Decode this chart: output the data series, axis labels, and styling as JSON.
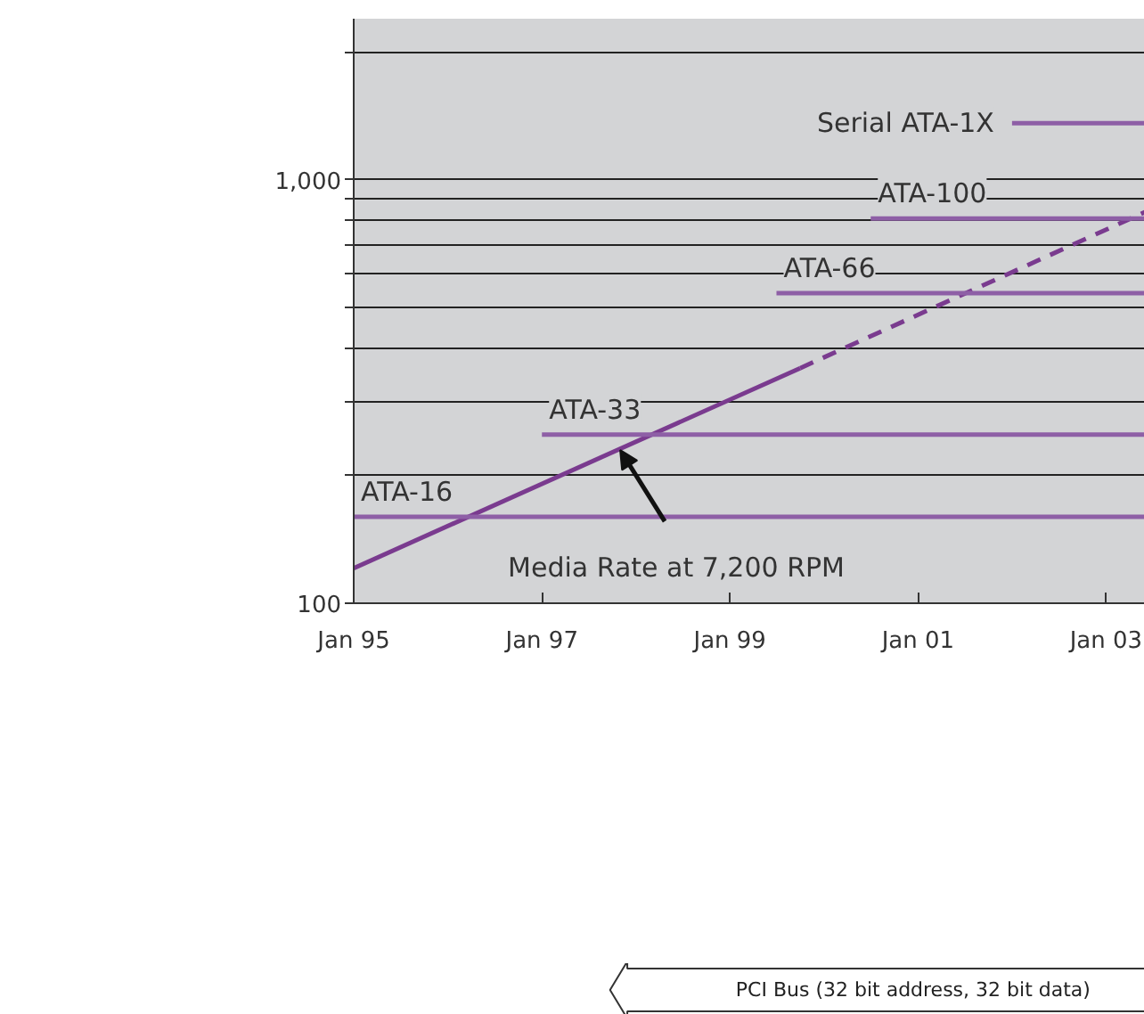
{
  "chart_data": {
    "type": "line",
    "xlim": [
      "1995-01",
      "2003-06"
    ],
    "xticks": [
      {
        "value": "1995-01",
        "label": "Jan 95"
      },
      {
        "value": "1997-01",
        "label": "Jan 97"
      },
      {
        "value": "1999-01",
        "label": "Jan 99"
      },
      {
        "value": "2001-01",
        "label": "Jan 01"
      },
      {
        "value": "2003-01",
        "label": "Jan 03"
      }
    ],
    "ylim": [
      100,
      2400
    ],
    "yticks": [
      100,
      {
        "value": 200,
        "label": null
      },
      {
        "value": 300,
        "label": null
      },
      {
        "value": 400,
        "label": null
      },
      {
        "value": 500,
        "label": null
      },
      {
        "value": 600,
        "label": null
      },
      {
        "value": 700,
        "label": null
      },
      {
        "value": 800,
        "label": null
      },
      {
        "value": 900,
        "label": null
      },
      {
        "value": 1000,
        "label": "1,000"
      },
      {
        "value": 2000,
        "label": null
      }
    ],
    "log": "y",
    "grid": "y",
    "series": [
      {
        "x": [
          "1995-01",
          "1999-10"
        ],
        "values": [
          121,
          359
        ],
        "color": "#7a3b8f",
        "line_style": "solid"
      },
      {
        "x": [
          "1999-10",
          "2003-06"
        ],
        "values": [
          359,
          839
        ],
        "color": "#7a3b8f",
        "line_style": "dashed"
      },
      {
        "name": "ATA-16",
        "x": [
          "1995-01",
          "2003-06"
        ],
        "values": [
          160,
          160
        ],
        "color": "#8e5fa6",
        "line_style": "solid"
      },
      {
        "name": "ATA-33",
        "x": [
          "1997-01",
          "2003-06"
        ],
        "values": [
          250,
          250
        ],
        "color": "#8e5fa6",
        "line_style": "solid"
      },
      {
        "name": "ATA-66",
        "x": [
          "1999-07",
          "2003-06"
        ],
        "values": [
          540,
          540
        ],
        "color": "#8e5fa6",
        "line_style": "solid"
      },
      {
        "name": "ATA-100",
        "x": [
          "2000-07",
          "2003-06"
        ],
        "values": [
          810,
          810
        ],
        "color": "#8e5fa6",
        "line_style": "solid"
      },
      {
        "name": "Serial ATA-1X",
        "x": [
          "2002-01",
          "2003-06"
        ],
        "values": [
          1360,
          1360
        ],
        "color": "#8e5fa6",
        "line_style": "solid"
      }
    ],
    "annotations": [
      {
        "text": "Media Rate at 7,200 RPM",
        "x": "1997-11",
        "y": 230
      },
      "PCI Bus (32 bit address, 32 bit data)"
    ]
  }
}
